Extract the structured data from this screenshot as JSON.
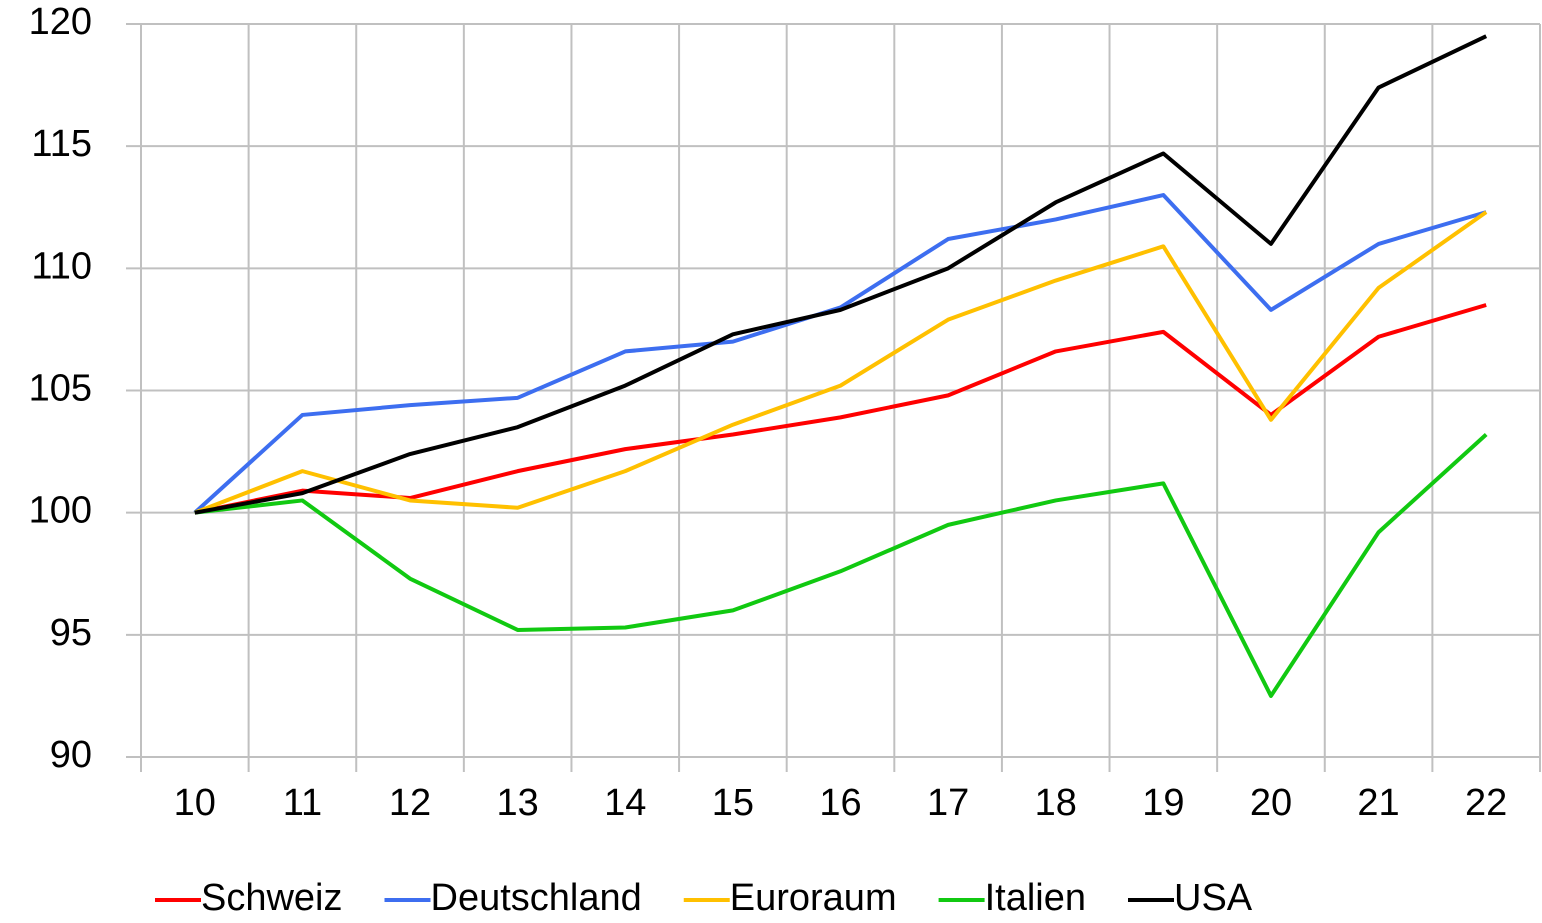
{
  "chart_data": {
    "type": "line",
    "categories": [
      "10",
      "11",
      "12",
      "13",
      "14",
      "15",
      "16",
      "17",
      "18",
      "19",
      "20",
      "21",
      "22"
    ],
    "series": [
      {
        "name": "Schweiz",
        "color": "#ff0000",
        "values": [
          100,
          100.9,
          100.6,
          101.7,
          102.6,
          103.2,
          103.9,
          104.8,
          106.6,
          107.4,
          104.0,
          107.2,
          108.5
        ]
      },
      {
        "name": "Deutschland",
        "color": "#3d6ef0",
        "values": [
          100,
          104.0,
          104.4,
          104.7,
          106.6,
          107.0,
          108.4,
          111.2,
          112.0,
          113.0,
          108.3,
          111.0,
          112.3
        ]
      },
      {
        "name": "Euroraum",
        "color": "#ffc000",
        "values": [
          100,
          101.7,
          100.5,
          100.2,
          101.7,
          103.6,
          105.2,
          107.9,
          109.5,
          110.9,
          103.8,
          109.2,
          112.3
        ]
      },
      {
        "name": "Italien",
        "color": "#11c911",
        "values": [
          100,
          100.5,
          97.3,
          95.2,
          95.3,
          96.0,
          97.6,
          99.5,
          100.5,
          101.2,
          92.5,
          99.2,
          103.2
        ]
      },
      {
        "name": "USA",
        "color": "#000000",
        "values": [
          100,
          100.8,
          102.4,
          103.5,
          105.2,
          107.3,
          108.3,
          110.0,
          112.7,
          114.7,
          111.0,
          117.4,
          119.5
        ]
      }
    ],
    "ylim": [
      90,
      120
    ],
    "yticks": [
      90,
      95,
      100,
      105,
      110,
      115,
      120
    ],
    "grid": true,
    "legend": "bottom"
  }
}
